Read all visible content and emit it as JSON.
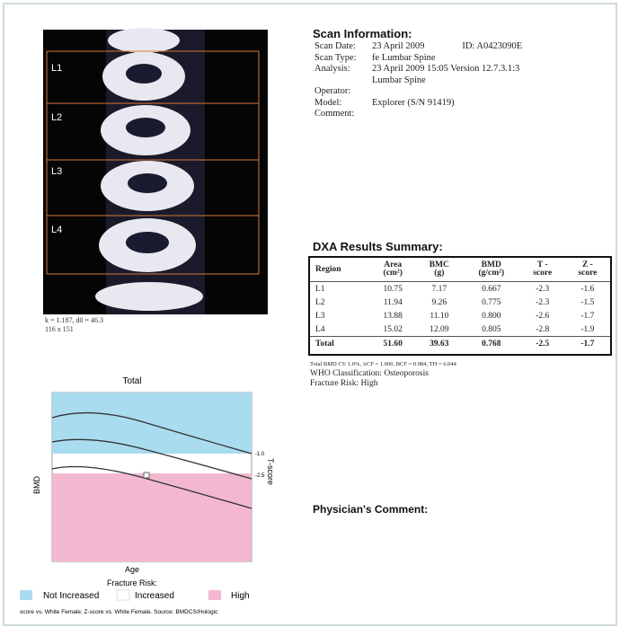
{
  "scan_image": {
    "labels": [
      "L1",
      "L2",
      "L3",
      "L4"
    ],
    "caption": [
      "k = 1.187, d0 = 46.3",
      "116 x 151"
    ]
  },
  "scan_info": {
    "title": "Scan Information:",
    "rows": [
      {
        "label": "Scan Date:",
        "value": "23 April 2009",
        "extra": "ID:  A0423090E"
      },
      {
        "label": "Scan Type:",
        "value": "fe Lumbar Spine"
      },
      {
        "label": "Analysis:",
        "value": "23 April 2009 15:05 Version 12.7.3.1:3"
      },
      {
        "value": "Lumbar Spine"
      },
      {
        "label": "Operator:"
      },
      {
        "label": "Model:",
        "value": "Explorer (S/N 91419)"
      },
      {
        "label": "Comment:"
      }
    ]
  },
  "dxa": {
    "title": "DXA Results Summary:",
    "header": [
      [
        "Region"
      ],
      [
        "Area",
        "(cm²)"
      ],
      [
        "BMC",
        "(g)"
      ],
      [
        "BMD",
        "(g/cm²)"
      ],
      [
        "T -",
        "score"
      ],
      [
        "Z -",
        "score"
      ]
    ],
    "rows": [
      [
        "L1",
        "10.75",
        "7.17",
        "0.667",
        "-2.3",
        "-1.6"
      ],
      [
        "L2",
        "11.94",
        "9.26",
        "0.775",
        "-2.3",
        "-1.5"
      ],
      [
        "L3",
        "13.88",
        "11.10",
        "0.800",
        "-2.6",
        "-1.7"
      ],
      [
        "L4",
        "15.02",
        "12.09",
        "0.805",
        "-2.8",
        "-1.9"
      ],
      [
        "Total",
        "51.60",
        "39.63",
        "0.768",
        "-2.5",
        "-1.7"
      ]
    ],
    "notes": [
      "Total BMD CV 1.0%, ACF = 1.000, BCF = 0.984, TH = 6.044",
      "WHO Classification:  Osteoporosis",
      "Fracture Risk:  High"
    ]
  },
  "reference_chart": {
    "title": "Total",
    "y_label": "BMD",
    "y2_label": "T-score",
    "y2_marks": [
      "-1.0",
      "-2.5"
    ],
    "x_label": "Age",
    "legend_title": "Fracture Risk:",
    "legend": [
      "Not Increased",
      "Increased",
      "High"
    ],
    "source": "score vs. White Female; Z-score vs. White Female. Source: BMDCS/Hologic"
  },
  "physician": {
    "title": "Physician's Comment:"
  }
}
